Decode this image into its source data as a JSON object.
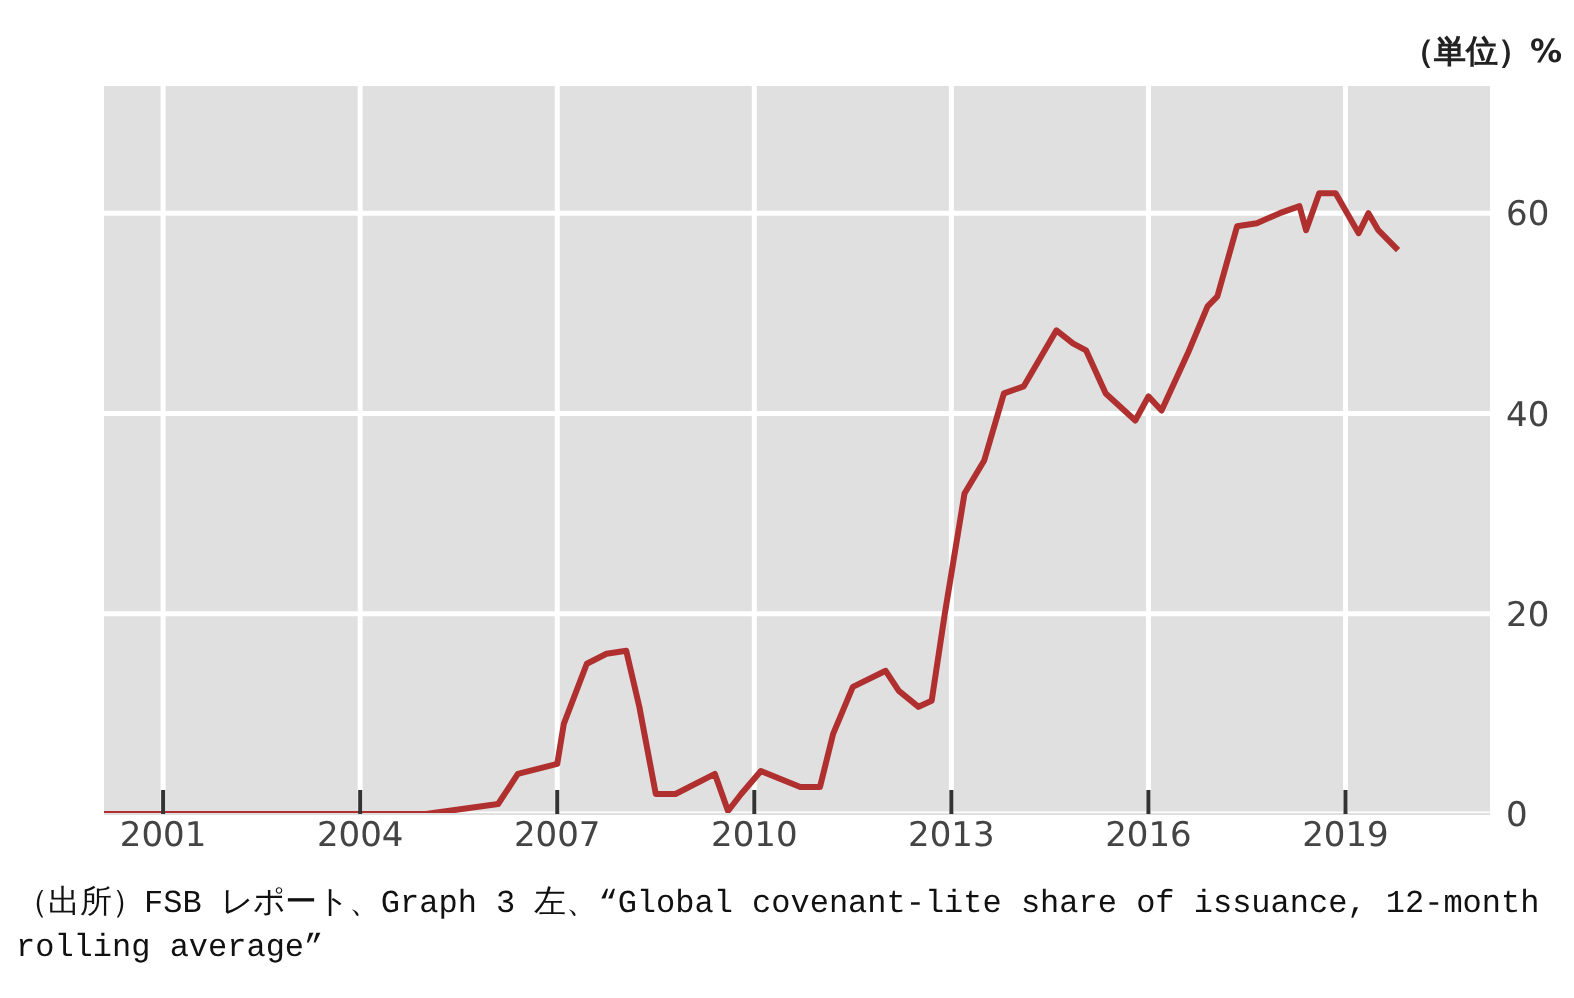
{
  "chart_data": {
    "type": "line",
    "ylabel": "（単位）%",
    "annotations": [
      "（出所）FSB レポート、Graph 3 左、“Global covenant-lite share of issuance, 12-month rolling average”"
    ],
    "x": [
      2000.1,
      2005.0,
      2006.1,
      2006.4,
      2007.0,
      2007.1,
      2007.45,
      2007.75,
      2008.05,
      2008.25,
      2008.5,
      2008.8,
      2009.4,
      2009.6,
      2009.8,
      2010.1,
      2010.7,
      2011.0,
      2011.2,
      2011.5,
      2012.0,
      2012.2,
      2012.5,
      2012.7,
      2012.9,
      2013.2,
      2013.5,
      2013.8,
      2014.1,
      2014.6,
      2014.85,
      2015.05,
      2015.35,
      2015.8,
      2016.0,
      2016.2,
      2016.6,
      2016.9,
      2017.05,
      2017.35,
      2017.65,
      2018.0,
      2018.3,
      2018.4,
      2018.6,
      2018.85,
      2019.2,
      2019.35,
      2019.5,
      2019.8
    ],
    "series": [
      {
        "color": "#b03030",
        "values": [
          0,
          0,
          1,
          4,
          5,
          9,
          15,
          16,
          16.3,
          10.7,
          2,
          2,
          4,
          0.3,
          2,
          4.3,
          2.7,
          2.7,
          8,
          12.7,
          14.3,
          12.3,
          10.7,
          11.3,
          20,
          32,
          35.3,
          42,
          42.7,
          48.3,
          47,
          46.3,
          42,
          39.3,
          41.7,
          40.3,
          46,
          50.7,
          51.7,
          58.7,
          59,
          60,
          60.7,
          58.3,
          62,
          62,
          58,
          60,
          58.3,
          56.3
        ]
      }
    ],
    "xlim": [
      2000.1,
      2021.2
    ],
    "xticks": [
      2001,
      2004,
      2007,
      2010,
      2013,
      2016,
      2019
    ],
    "ylim": [
      0,
      72.7
    ],
    "yticks": [
      0,
      20,
      40,
      60
    ],
    "grid": true,
    "marker": "none",
    "line_style": "solid"
  }
}
